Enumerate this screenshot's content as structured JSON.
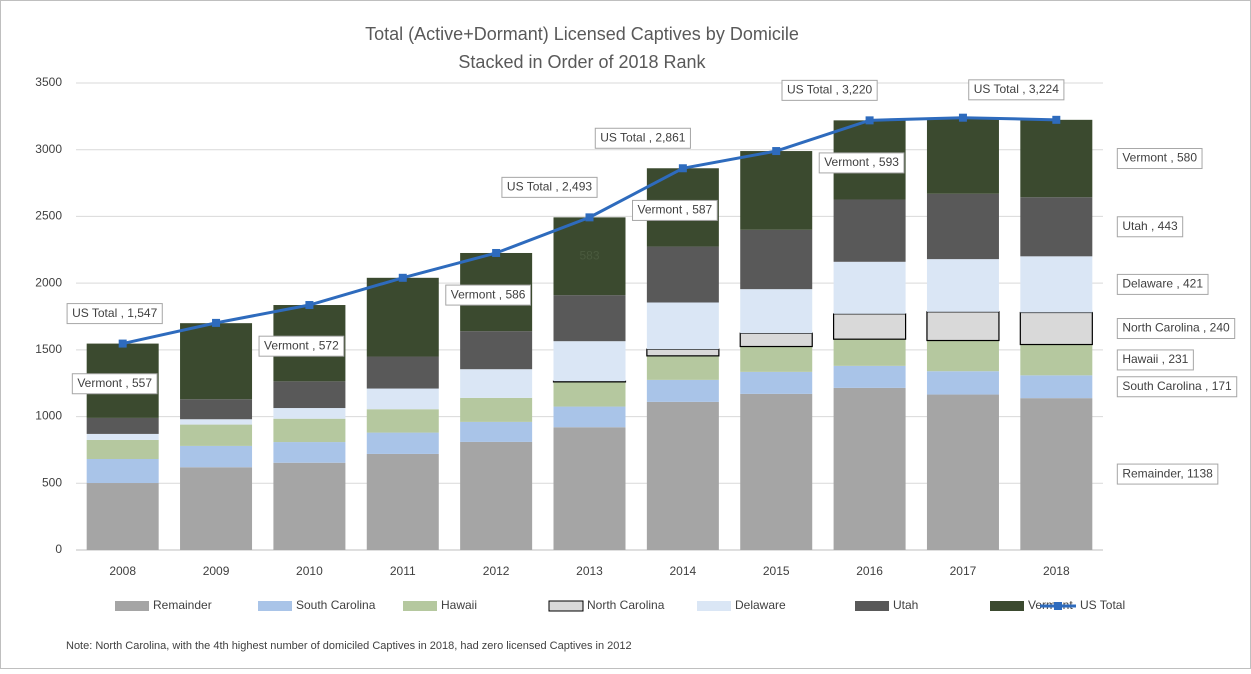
{
  "chart_data": {
    "type": "bar",
    "stacked": true,
    "title": "Total (Active+Dormant) Licensed Captives by Domicile",
    "subtitle": "Stacked in Order of 2018 Rank",
    "note": "Note: North Carolina, with the 4th highest number of domiciled Captives in 2018, had zero licensed Captives in 2012",
    "categories": [
      "2008",
      "2009",
      "2010",
      "2011",
      "2012",
      "2013",
      "2014",
      "2015",
      "2016",
      "2017",
      "2018"
    ],
    "series": [
      {
        "name": "Remainder",
        "color": "#a5a5a5",
        "values": [
          502,
          620,
          654,
          720,
          810,
          920,
          1110,
          1170,
          1215,
          1165,
          1138
        ],
        "value_labels": [
          null,
          null,
          null,
          null,
          null,
          null,
          null,
          null,
          null,
          null,
          "Remainder, 1138"
        ]
      },
      {
        "name": "South Carolina",
        "color": "#a9c4e8",
        "values": [
          180,
          160,
          155,
          160,
          150,
          155,
          165,
          165,
          165,
          175,
          171
        ],
        "value_labels": [
          null,
          null,
          null,
          null,
          null,
          null,
          null,
          null,
          null,
          null,
          "South Carolina , 171"
        ]
      },
      {
        "name": "Hawaii",
        "color": "#b5c89f",
        "values": [
          143,
          160,
          175,
          175,
          180,
          185,
          180,
          190,
          200,
          230,
          231
        ],
        "value_labels": [
          null,
          null,
          null,
          null,
          null,
          null,
          null,
          null,
          null,
          null,
          "Hawaii , 231"
        ]
      },
      {
        "name": "North Carolina",
        "color": "#d9d9d9",
        "border": "#000000",
        "values": [
          0,
          0,
          0,
          0,
          0,
          5,
          50,
          100,
          190,
          215,
          240
        ],
        "value_labels": [
          null,
          null,
          null,
          null,
          null,
          null,
          null,
          null,
          null,
          null,
          "North Carolina , 240"
        ]
      },
      {
        "name": "Delaware",
        "color": "#dae6f5",
        "values": [
          45,
          40,
          80,
          155,
          215,
          300,
          350,
          330,
          390,
          395,
          421
        ],
        "value_labels": [
          null,
          null,
          null,
          null,
          null,
          null,
          null,
          null,
          null,
          null,
          "Delaware , 421"
        ]
      },
      {
        "name": "Utah",
        "color": "#595959",
        "values": [
          120,
          150,
          200,
          240,
          285,
          345,
          419,
          445,
          467,
          490,
          443
        ],
        "value_labels": [
          null,
          null,
          null,
          null,
          null,
          null,
          null,
          null,
          null,
          null,
          "Utah , 443"
        ]
      },
      {
        "name": "Vermont",
        "color": "#3b4a2f",
        "values": [
          557,
          570,
          572,
          590,
          586,
          583,
          587,
          590,
          593,
          570,
          580
        ],
        "value_labels": [
          "Vermont , 557",
          null,
          "Vermont , 572",
          null,
          "Vermont , 586",
          "583",
          "Vermont , 587",
          null,
          "Vermont , 593",
          null,
          "Vermont , 580"
        ]
      },
      {
        "name": "US Total",
        "type": "line",
        "color": "#2e6bbd",
        "values": [
          1547,
          1702,
          1836,
          2040,
          2226,
          2493,
          2861,
          2990,
          3220,
          3240,
          3224
        ],
        "value_labels": [
          "US Total , 1,547",
          null,
          null,
          null,
          null,
          "US Total , 2,493",
          "US Total , 2,861",
          null,
          "US Total , 3,220",
          null,
          "US Total , 3,224"
        ]
      }
    ],
    "ylim": [
      0,
      3500
    ],
    "yticks": [
      0,
      500,
      1000,
      1500,
      2000,
      2500,
      3000,
      3500
    ],
    "grid": true,
    "legend": "bottom"
  }
}
